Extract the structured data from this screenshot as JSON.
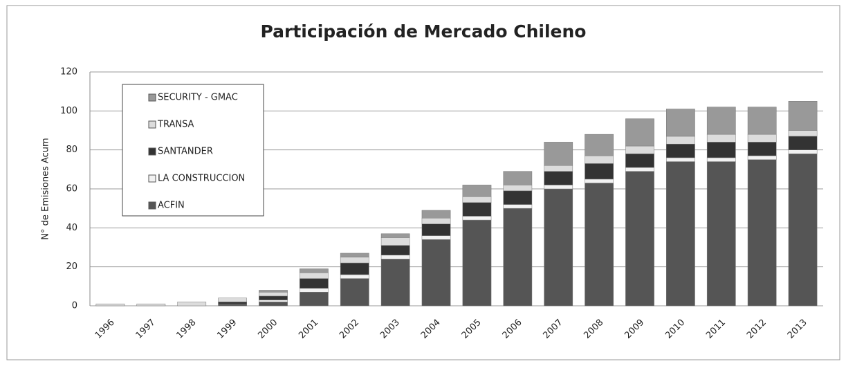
{
  "chart_data": {
    "type": "stacked_bar",
    "title": "Participación de Mercado Chileno",
    "y_label": "N° de Emisiones Acum",
    "categories": [
      "1996",
      "1997",
      "1998",
      "1999",
      "2000",
      "2001",
      "2002",
      "2003",
      "2004",
      "2005",
      "2006",
      "2007",
      "2008",
      "2009",
      "2010",
      "2011",
      "2012",
      "2013"
    ],
    "series": [
      {
        "name": "ACFIN",
        "color": "#555555",
        "values": [
          0,
          0,
          0,
          1,
          2,
          7,
          14,
          24,
          34,
          44,
          50,
          60,
          63,
          69,
          74,
          74,
          75,
          78
        ]
      },
      {
        "name": "LA CONSTRUCCION",
        "color": "#f2f2f2",
        "values": [
          0,
          0,
          0,
          0,
          1,
          2,
          2,
          2,
          2,
          2,
          2,
          2,
          2,
          2,
          2,
          2,
          2,
          2
        ]
      },
      {
        "name": "SANTANDER",
        "color": "#333333",
        "values": [
          0,
          0,
          0,
          1,
          2,
          5,
          6,
          5,
          6,
          7,
          7,
          7,
          8,
          7,
          7,
          8,
          7,
          7
        ]
      },
      {
        "name": "TRANSA",
        "color": "#dcdcdc",
        "values": [
          1,
          1,
          2,
          2,
          2,
          3,
          3,
          4,
          3,
          3,
          3,
          3,
          4,
          4,
          4,
          4,
          4,
          3
        ]
      },
      {
        "name": "SECURITY - GMAC",
        "color": "#999999",
        "values": [
          0,
          0,
          0,
          0,
          1,
          2,
          2,
          2,
          4,
          6,
          7,
          12,
          11,
          14,
          14,
          14,
          14,
          15
        ]
      }
    ],
    "ylim": [
      0,
      120
    ],
    "yticks": [
      0,
      20,
      40,
      60,
      80,
      100,
      120
    ],
    "grid": true
  }
}
